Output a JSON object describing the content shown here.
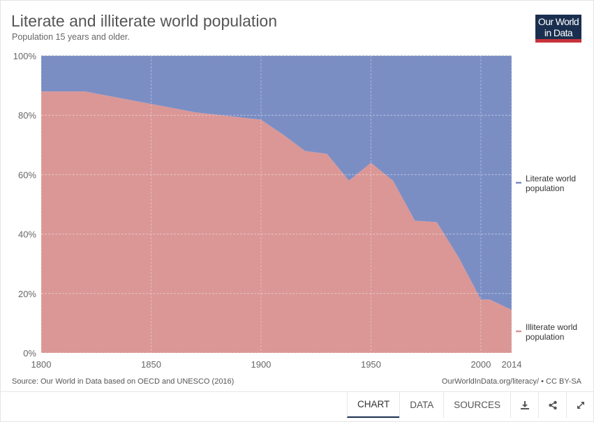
{
  "header": {
    "title": "Literate and illiterate world population",
    "subtitle": "Population 15 years and older."
  },
  "logo": {
    "line1": "Our World",
    "line2": "in Data"
  },
  "footer": {
    "source": "Source: Our World in Data based on OECD and UNESCO (2016)",
    "license": "OurWorldInData.org/literacy/ • CC BY-SA"
  },
  "tabs": {
    "chart": "CHART",
    "data": "DATA",
    "sources": "SOURCES",
    "download_icon": "download-icon",
    "share_icon": "share-icon",
    "expand_icon": "expand-icon"
  },
  "chart_data": {
    "type": "area",
    "stacked": true,
    "x": [
      1800,
      1820,
      1870,
      1900,
      1910,
      1920,
      1930,
      1940,
      1950,
      1960,
      1970,
      1980,
      1990,
      2000,
      2004,
      2014
    ],
    "series": [
      {
        "name": "Illiterate world population",
        "color": "#da9796",
        "values": [
          88,
          88,
          81,
          78.5,
          73.5,
          68,
          67,
          58,
          64,
          58,
          44.5,
          44,
          32,
          18,
          18,
          14.5
        ]
      },
      {
        "name": "Literate world population",
        "color": "#7b8ec4",
        "values": [
          12,
          12,
          19,
          21.5,
          26.5,
          32,
          33,
          42,
          36,
          42,
          55.5,
          56,
          68,
          82,
          82,
          85.5
        ]
      }
    ],
    "ylim": [
      0,
      100
    ],
    "xlim": [
      1800,
      2014
    ],
    "ytick_labels": [
      "0%",
      "20%",
      "40%",
      "60%",
      "80%",
      "100%"
    ],
    "yticks": [
      0,
      20,
      40,
      60,
      80,
      100
    ],
    "xtick_labels": [
      "1800",
      "1850",
      "1900",
      "1950",
      "2000",
      "2014"
    ],
    "xticks": [
      1800,
      1850,
      1900,
      1950,
      2000,
      2014
    ],
    "legend_labels": [
      [
        "Literate world",
        "population"
      ],
      [
        "Illiterate world",
        "population"
      ]
    ],
    "legend_placement": "right",
    "grid": true
  }
}
